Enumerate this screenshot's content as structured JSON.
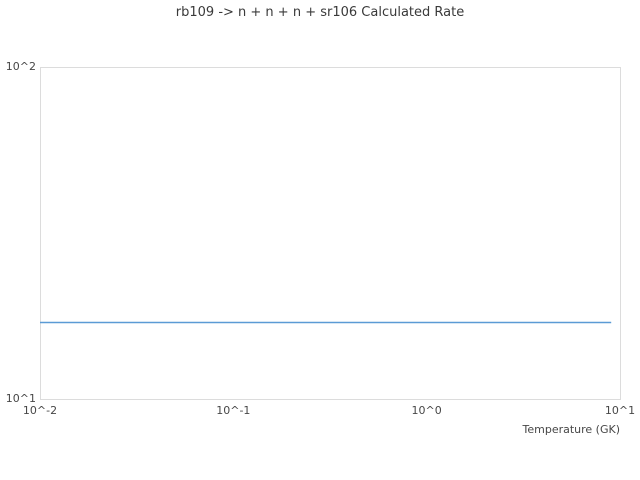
{
  "chart_data": {
    "type": "line",
    "title": "rb109 -> n + n + n + sr106 Calculated Rate",
    "xlabel": "Temperature (GK)",
    "ylabel": "",
    "xscale": "log",
    "yscale": "log",
    "xlim": [
      0.01,
      10
    ],
    "ylim": [
      10,
      100
    ],
    "grid": false,
    "legend_position": "none",
    "x_ticks": [
      {
        "value": 0.01,
        "label": "10^-2"
      },
      {
        "value": 0.1,
        "label": "10^-1"
      },
      {
        "value": 1,
        "label": "10^0"
      },
      {
        "value": 10,
        "label": "10^1"
      }
    ],
    "y_ticks": [
      {
        "value": 10,
        "label": "10^1"
      },
      {
        "value": 100,
        "label": "10^2"
      }
    ],
    "series": [
      {
        "name": "calculated rate",
        "color": "#5b9bd5",
        "x": [
          0.01,
          9.0
        ],
        "y": [
          17,
          17
        ]
      }
    ]
  },
  "colors": {
    "background": "#ffffff",
    "plot_border": "#dcdcdc",
    "title_text": "#3a3a3a",
    "tick_text": "#474747",
    "line": "#5b9bd5"
  }
}
